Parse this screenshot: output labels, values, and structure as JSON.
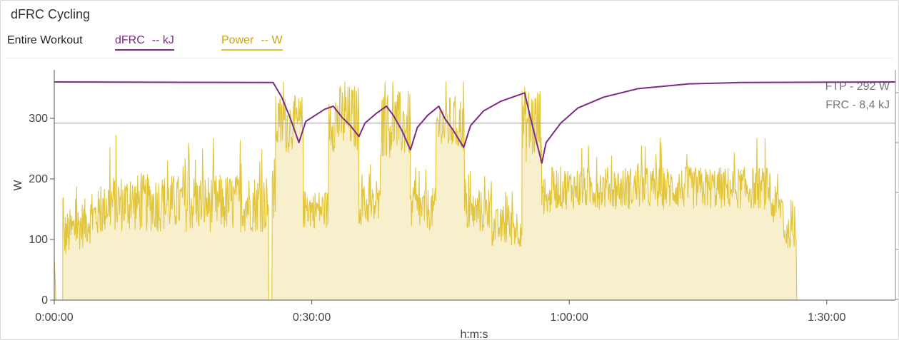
{
  "title": "dFRC Cycling",
  "scope_label": "Entire Workout",
  "legend": {
    "dfrc_label": "dFRC",
    "dfrc_value": "-- kJ",
    "power_label": "Power",
    "power_value": "-- W"
  },
  "colors": {
    "dfrc": "#7b2a85",
    "power_line": "#e2c53a",
    "power_fill": "#f8f0cc",
    "ftp_line": "#a8a8a8"
  },
  "chart_data": {
    "type": "line",
    "xlabel": "h:m:s",
    "ylabel": "W",
    "xlim": [
      0,
      98
    ],
    "ylim": [
      0,
      380
    ],
    "yticks": [
      0,
      100,
      200,
      300
    ],
    "ytick_labels": [
      "0",
      "100",
      "200",
      "300"
    ],
    "xticks": [
      0,
      30,
      60,
      90
    ],
    "xtick_labels": [
      "0:00:00",
      "0:30:00",
      "1:00:00",
      "1:30:00"
    ],
    "grid": false,
    "reference_lines": [
      {
        "name": "FTP",
        "label": "FTP - 292 W",
        "value": 292
      },
      {
        "label": "FRC - 8,4 kJ"
      }
    ],
    "series": [
      {
        "name": "Power",
        "unit": "W",
        "style": "area",
        "segments": [
          {
            "from": 0.0,
            "to": 0.2,
            "mean": 55,
            "noise": 15,
            "start": 60,
            "end": 0
          },
          {
            "from": 0.2,
            "to": 1.0,
            "mean": 0,
            "noise": 0
          },
          {
            "from": 1.0,
            "to": 1.1,
            "mean": 165,
            "noise": 5
          },
          {
            "from": 1.1,
            "to": 6.0,
            "mean": 125,
            "noise": 25,
            "start": 105,
            "end": 150
          },
          {
            "from": 6.0,
            "to": 25.0,
            "mean": 160,
            "noise": 30
          },
          {
            "from": 25.0,
            "to": 25.4,
            "mean": 0,
            "noise": 0
          },
          {
            "from": 25.4,
            "to": 25.8,
            "mean": 170,
            "noise": 30
          },
          {
            "from": 25.8,
            "to": 29.0,
            "mean": 290,
            "noise": 30
          },
          {
            "from": 29.0,
            "to": 32.0,
            "mean": 150,
            "noise": 20
          },
          {
            "from": 32.0,
            "to": 35.5,
            "mean": 300,
            "noise": 35
          },
          {
            "from": 35.5,
            "to": 38.0,
            "mean": 155,
            "noise": 20
          },
          {
            "from": 38.0,
            "to": 41.5,
            "mean": 290,
            "noise": 35
          },
          {
            "from": 41.5,
            "to": 44.5,
            "mean": 150,
            "noise": 22
          },
          {
            "from": 44.5,
            "to": 47.8,
            "mean": 290,
            "noise": 30
          },
          {
            "from": 47.8,
            "to": 51.0,
            "mean": 145,
            "noise": 22
          },
          {
            "from": 51.0,
            "to": 54.5,
            "mean": 120,
            "noise": 20
          },
          {
            "from": 54.5,
            "to": 56.8,
            "mean": 290,
            "noise": 40
          },
          {
            "from": 56.8,
            "to": 57.8,
            "mean": 165,
            "noise": 15
          },
          {
            "from": 57.8,
            "to": 83.5,
            "mean": 185,
            "noise": 22
          },
          {
            "from": 83.5,
            "to": 85.0,
            "mean": 155,
            "noise": 20
          },
          {
            "from": 85.0,
            "to": 86.5,
            "mean": 110,
            "noise": 15
          },
          {
            "from": 86.5,
            "to": 98.0,
            "mean": 0,
            "noise": 0
          }
        ]
      },
      {
        "name": "dFRC",
        "unit": "kJ",
        "style": "line",
        "points": [
          [
            0,
            360
          ],
          [
            25.5,
            359
          ],
          [
            26.5,
            335
          ],
          [
            27.5,
            300
          ],
          [
            28.5,
            260
          ],
          [
            29.3,
            295
          ],
          [
            31.5,
            315
          ],
          [
            32.5,
            320
          ],
          [
            33.5,
            302
          ],
          [
            34.5,
            288
          ],
          [
            35.5,
            270
          ],
          [
            36.2,
            292
          ],
          [
            37.5,
            308
          ],
          [
            38.7,
            320
          ],
          [
            39.5,
            305
          ],
          [
            40.5,
            280
          ],
          [
            41.5,
            248
          ],
          [
            42.3,
            285
          ],
          [
            43.5,
            305
          ],
          [
            44.8,
            320
          ],
          [
            45.5,
            300
          ],
          [
            46.5,
            280
          ],
          [
            47.7,
            252
          ],
          [
            48.5,
            288
          ],
          [
            50.0,
            312
          ],
          [
            52.0,
            328
          ],
          [
            54.8,
            342
          ],
          [
            55.5,
            300
          ],
          [
            56.8,
            226
          ],
          [
            57.3,
            260
          ],
          [
            59.0,
            292
          ],
          [
            61.0,
            317
          ],
          [
            64.0,
            335
          ],
          [
            68.0,
            349
          ],
          [
            74.0,
            357
          ],
          [
            80.0,
            359
          ],
          [
            98.0,
            360
          ]
        ]
      }
    ]
  }
}
